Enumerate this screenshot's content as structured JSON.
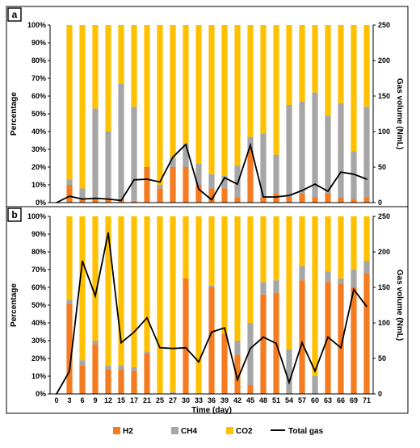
{
  "colors": {
    "H2": "#f47b20",
    "CH4": "#a6a6a6",
    "CO2": "#ffc000",
    "total": "#000000"
  },
  "chart_data": [
    {
      "type": "bar",
      "panel_label": "a",
      "stacked": true,
      "percent_stacked": true,
      "categories": [
        "0",
        "3",
        "6",
        "9",
        "12",
        "15",
        "17",
        "21",
        "25",
        "27",
        "30",
        "33",
        "36",
        "39",
        "42",
        "45",
        "48",
        "51",
        "54",
        "57",
        "60",
        "63",
        "66",
        "69",
        "71"
      ],
      "series": [
        {
          "name": "H2",
          "values": [
            0,
            10,
            2,
            2,
            2,
            2,
            1,
            20,
            8,
            20,
            20,
            10,
            8,
            8,
            3,
            30,
            3,
            5,
            3,
            5,
            3,
            5,
            3,
            2,
            3
          ]
        },
        {
          "name": "CH4",
          "values": [
            0,
            3,
            6,
            51,
            38,
            65,
            53,
            0,
            2,
            5,
            13,
            12,
            8,
            7,
            18,
            7,
            36,
            22,
            52,
            52,
            59,
            44,
            53,
            27,
            51
          ]
        },
        {
          "name": "CO2",
          "values": [
            0,
            87,
            92,
            47,
            60,
            33,
            46,
            80,
            90,
            75,
            67,
            78,
            84,
            85,
            79,
            63,
            61,
            73,
            45,
            43,
            38,
            51,
            44,
            71,
            46
          ]
        },
        {
          "name": "Total gas",
          "type": "line",
          "axis": "right",
          "values": [
            0,
            9,
            5,
            6,
            5,
            3,
            32,
            33,
            29,
            64,
            82,
            19,
            4,
            35,
            26,
            81,
            8,
            8,
            10,
            17,
            26,
            16,
            43,
            40,
            33
          ]
        }
      ],
      "ylabel": "Percentage",
      "y2label": "Gas volume (NmL)",
      "ylim": [
        0,
        100
      ],
      "y2lim": [
        0,
        250
      ],
      "yticks": [
        "0%",
        "10%",
        "20%",
        "30%",
        "40%",
        "50%",
        "60%",
        "70%",
        "80%",
        "90%",
        "100%"
      ],
      "y2ticks": [
        "0",
        "50",
        "100",
        "150",
        "200",
        "250"
      ]
    },
    {
      "type": "bar",
      "panel_label": "b",
      "stacked": true,
      "percent_stacked": true,
      "categories": [
        "0",
        "3",
        "6",
        "9",
        "12",
        "15",
        "17",
        "21",
        "25",
        "27",
        "30",
        "33",
        "36",
        "39",
        "42",
        "45",
        "48",
        "51",
        "54",
        "57",
        "60",
        "63",
        "66",
        "69",
        "71"
      ],
      "series": [
        {
          "name": "H2",
          "values": [
            0,
            51,
            16,
            28,
            14,
            14,
            13,
            23,
            0,
            0,
            65,
            0,
            60,
            34,
            22,
            5,
            56,
            57,
            0,
            64,
            0,
            63,
            62,
            60,
            68
          ]
        },
        {
          "name": "CH4",
          "values": [
            0,
            2,
            3,
            2,
            2,
            2,
            2,
            1,
            0,
            1,
            0,
            0,
            1,
            0,
            8,
            35,
            7,
            7,
            25,
            8,
            10,
            6,
            3,
            10,
            7
          ]
        },
        {
          "name": "CO2",
          "values": [
            0,
            47,
            81,
            70,
            84,
            84,
            85,
            76,
            100,
            99,
            35,
            100,
            39,
            66,
            70,
            60,
            37,
            36,
            75,
            28,
            90,
            31,
            35,
            30,
            25
          ]
        },
        {
          "name": "Total gas",
          "type": "line",
          "axis": "right",
          "values": [
            0,
            32,
            187,
            138,
            227,
            72,
            87,
            107,
            65,
            64,
            65,
            45,
            87,
            93,
            20,
            64,
            80,
            71,
            16,
            72,
            32,
            80,
            65,
            147,
            123
          ]
        }
      ],
      "xlabel": "Time (day)",
      "ylabel": "Percentage",
      "y2label": "Gas volume (NmL)",
      "ylim": [
        0,
        100
      ],
      "y2lim": [
        0,
        250
      ],
      "yticks": [
        "0%",
        "10%",
        "20%",
        "30%",
        "40%",
        "50%",
        "60%",
        "70%",
        "80%",
        "90%",
        "100%"
      ],
      "y2ticks": [
        "0",
        "50",
        "100",
        "150",
        "200",
        "250"
      ]
    }
  ],
  "legend": {
    "placement": "bottom",
    "items": [
      {
        "name": "H2",
        "kind": "box"
      },
      {
        "name": "CH4",
        "kind": "box"
      },
      {
        "name": "CO2",
        "kind": "box"
      },
      {
        "name": "Total gas",
        "kind": "line"
      }
    ]
  }
}
